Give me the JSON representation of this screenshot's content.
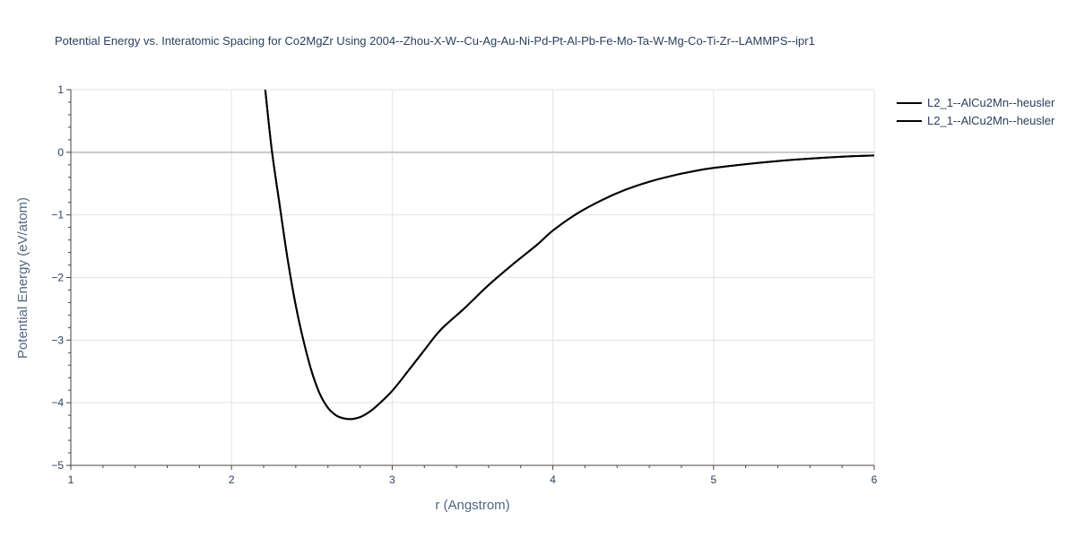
{
  "chart_data": {
    "type": "line",
    "title": "Potential Energy vs. Interatomic Spacing for Co2MgZr Using 2004--Zhou-X-W--Cu-Ag-Au-Ni-Pd-Pt-Al-Pb-Fe-Mo-Ta-W-Mg-Co-Ti-Zr--LAMMPS--ipr1",
    "xlabel": "r (Angstrom)",
    "ylabel": "Potential Energy (eV/atom)",
    "xlim": [
      1,
      6
    ],
    "ylim": [
      -5,
      1
    ],
    "x_ticks": [
      "1",
      "2",
      "3",
      "4",
      "5",
      "6"
    ],
    "y_ticks": [
      "1",
      "0",
      "−1",
      "−2",
      "−3",
      "−4",
      "−5"
    ],
    "grid": true,
    "legend_position": "top-right",
    "series": [
      {
        "name": "L2_1--AlCu2Mn--heusler",
        "color": "#000000",
        "x": [
          2.21,
          2.25,
          2.3,
          2.35,
          2.4,
          2.45,
          2.5,
          2.55,
          2.6,
          2.65,
          2.7,
          2.75,
          2.8,
          2.85,
          2.9,
          3.0,
          3.1,
          3.2,
          3.3,
          3.45,
          3.6,
          3.75,
          3.9,
          4.0,
          4.15,
          4.3,
          4.45,
          4.6,
          4.75,
          4.9,
          5.0,
          5.2,
          5.4,
          5.6,
          5.8,
          6.0
        ],
        "y": [
          1.0,
          0.05,
          -0.85,
          -1.72,
          -2.45,
          -3.03,
          -3.51,
          -3.86,
          -4.08,
          -4.2,
          -4.25,
          -4.26,
          -4.23,
          -4.16,
          -4.06,
          -3.81,
          -3.49,
          -3.16,
          -2.84,
          -2.49,
          -2.12,
          -1.79,
          -1.48,
          -1.25,
          -0.98,
          -0.77,
          -0.6,
          -0.47,
          -0.37,
          -0.29,
          -0.25,
          -0.19,
          -0.14,
          -0.1,
          -0.07,
          -0.05
        ]
      },
      {
        "name": "L2_1--AlCu2Mn--heusler",
        "color": "#000000",
        "x": [
          2.21,
          2.25,
          2.3,
          2.35,
          2.4,
          2.45,
          2.5,
          2.55,
          2.6,
          2.65,
          2.7,
          2.75,
          2.8,
          2.85,
          2.9,
          3.0,
          3.1,
          3.2,
          3.3,
          3.45,
          3.6,
          3.75,
          3.9,
          4.0,
          4.15,
          4.3,
          4.45,
          4.6,
          4.75,
          4.9,
          5.0,
          5.2,
          5.4,
          5.6,
          5.8,
          6.0
        ],
        "y": [
          1.0,
          0.05,
          -0.85,
          -1.72,
          -2.45,
          -3.03,
          -3.51,
          -3.86,
          -4.08,
          -4.2,
          -4.25,
          -4.26,
          -4.23,
          -4.16,
          -4.06,
          -3.81,
          -3.49,
          -3.16,
          -2.84,
          -2.49,
          -2.12,
          -1.79,
          -1.48,
          -1.25,
          -0.98,
          -0.77,
          -0.6,
          -0.47,
          -0.37,
          -0.29,
          -0.25,
          -0.19,
          -0.14,
          -0.1,
          -0.07,
          -0.05
        ]
      }
    ]
  }
}
